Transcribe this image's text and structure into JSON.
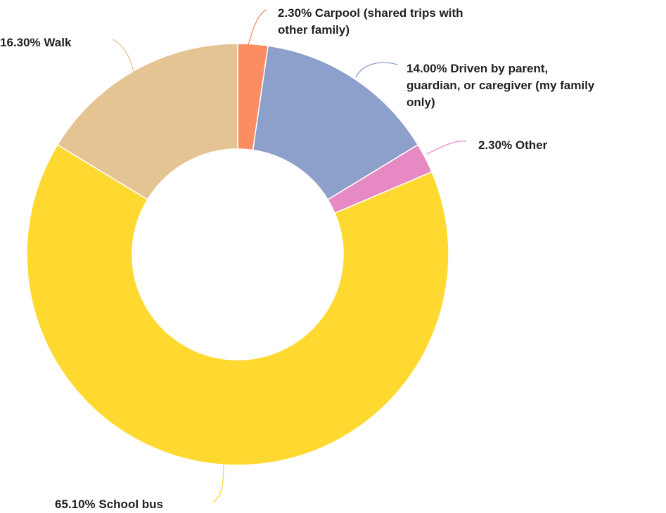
{
  "chart_data": {
    "type": "pie",
    "donut": true,
    "title": "",
    "legend": "none",
    "slices": [
      {
        "label": "Carpool (shared trips with other family)",
        "value": 2.3,
        "display": "2.30%",
        "color": "#fc8d62"
      },
      {
        "label": "Driven by parent, guardian, or caregiver (my family only)",
        "value": 14.0,
        "display": "14.00%",
        "color": "#8da0cb"
      },
      {
        "label": "Other",
        "value": 2.3,
        "display": "2.30%",
        "color": "#e78ac3"
      },
      {
        "label": "School bus",
        "value": 65.1,
        "display": "65.10%",
        "color": "#ffd92f"
      },
      {
        "label": "Walk",
        "value": 16.3,
        "display": "16.30%",
        "color": "#e5c494"
      }
    ],
    "labels": [
      {
        "lines": [
          "2.30% Carpool (shared trips with",
          "other family)"
        ]
      },
      {
        "lines": [
          "14.00% Driven by parent,",
          "guardian, or caregiver (my family",
          "only)"
        ]
      },
      {
        "lines": [
          "2.30% Other"
        ]
      },
      {
        "lines": [
          "65.10% School bus"
        ]
      },
      {
        "lines": [
          "16.30% Walk"
        ]
      }
    ]
  }
}
